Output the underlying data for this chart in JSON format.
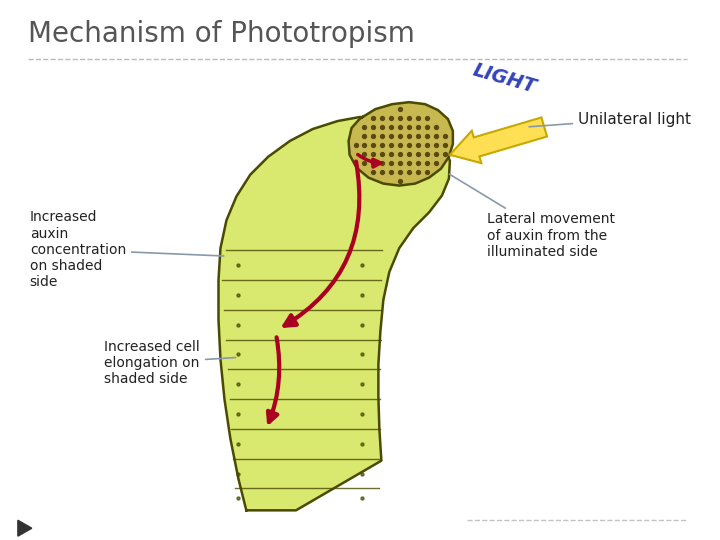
{
  "title": "Mechanism of Phototropism",
  "title_color": "#555555",
  "title_fontsize": 20,
  "background_color": "#ffffff",
  "annotations": {
    "unilateral_light": "Unilateral light",
    "increased_auxin": "Increased\nauxin\nconcentration\non shaded\nside",
    "increased_cell": "Increased cell\nelongation on\nshaded side",
    "lateral_movement": "Lateral movement\nof auxin from the\nilluminated side",
    "light_text": "LIGHT"
  },
  "stem_fill": "#d9e86e",
  "stem_outline": "#4a4a00",
  "tip_fill": "#c8b850",
  "tip_dot_color": "#5a4a10",
  "arrow_light_fill": "#ffe055",
  "arrow_light_edge": "#c8a800",
  "arrow_auxin_color": "#aa0022",
  "line_color": "#8899aa",
  "text_color": "#222222",
  "divider_color": "#aaaaaa",
  "play_color": "#333333",
  "light_text_color": "#3344bb"
}
